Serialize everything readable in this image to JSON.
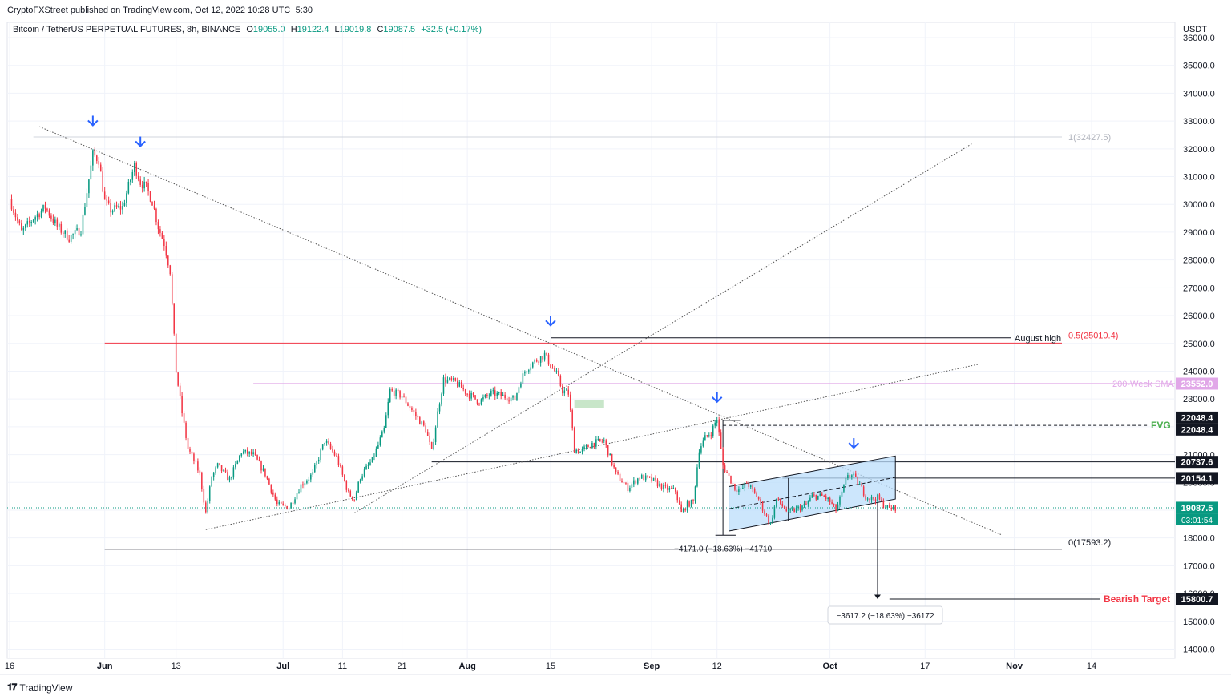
{
  "publisher_line": "CryptoFXStreet published on TradingView.com, Oct 12, 2022 10:28 UTC+5:30",
  "brand": "TradingView",
  "legend": {
    "symbol": "Bitcoin / TetherUS PERPETUAL FUTURES, 8h, BINANCE",
    "o_label": "O",
    "o": "19055.0",
    "h_label": "H",
    "h": "19122.4",
    "l_label": "L",
    "l": "19019.8",
    "c_label": "C",
    "c": "19087.5",
    "change": "+32.5 (+0.17%)"
  },
  "colors": {
    "up": "#089981",
    "down": "#f23645",
    "grid": "#f0f3fa",
    "sma": "#e1a7e8",
    "red_level": "#f23645",
    "arrow": "#2962ff",
    "channel_fill": "#bbdefb",
    "fvg": "#4caf50",
    "fib_grey": "#b2b5be"
  },
  "chart_data": {
    "type": "candlestick",
    "title": "Bitcoin / TetherUS PERPETUAL FUTURES, 8h, BINANCE",
    "ylabel": "USDT",
    "y_axis_unit": "USDT",
    "ylim": [
      13700,
      36300
    ],
    "y_ticks": [
      14000,
      15000,
      16000,
      17000,
      18000,
      19000,
      20000,
      21000,
      22000,
      23000,
      24000,
      25000,
      26000,
      27000,
      28000,
      29000,
      30000,
      31000,
      32000,
      33000,
      34000,
      35000,
      36000
    ],
    "x_ticks": [
      {
        "label": "16",
        "date": "2022-05-16"
      },
      {
        "label": "Jun",
        "date": "2022-06-01"
      },
      {
        "label": "13",
        "date": "2022-06-13"
      },
      {
        "label": "Jul",
        "date": "2022-07-01"
      },
      {
        "label": "11",
        "date": "2022-07-11"
      },
      {
        "label": "21",
        "date": "2022-07-21"
      },
      {
        "label": "Aug",
        "date": "2022-08-01"
      },
      {
        "label": "15",
        "date": "2022-08-15"
      },
      {
        "label": "Sep",
        "date": "2022-09-01"
      },
      {
        "label": "12",
        "date": "2022-09-12"
      },
      {
        "label": "Oct",
        "date": "2022-10-01"
      },
      {
        "label": "17",
        "date": "2022-10-17"
      },
      {
        "label": "Nov",
        "date": "2022-11-01"
      },
      {
        "label": "14",
        "date": "2022-11-14"
      }
    ],
    "price_path": [
      [
        "2022-05-16",
        30200
      ],
      [
        "2022-05-18",
        29000
      ],
      [
        "2022-05-20",
        29500
      ],
      [
        "2022-05-22",
        29900
      ],
      [
        "2022-05-24",
        29200
      ],
      [
        "2022-05-26",
        28800
      ],
      [
        "2022-05-28",
        29100
      ],
      [
        "2022-05-30",
        31800
      ],
      [
        "2022-05-31",
        31600
      ],
      [
        "2022-06-01",
        30100
      ],
      [
        "2022-06-02",
        29800
      ],
      [
        "2022-06-04",
        29900
      ],
      [
        "2022-06-06",
        31400
      ],
      [
        "2022-06-07",
        30800
      ],
      [
        "2022-06-08",
        30600
      ],
      [
        "2022-06-09",
        30100
      ],
      [
        "2022-06-10",
        29200
      ],
      [
        "2022-06-11",
        28600
      ],
      [
        "2022-06-12",
        27600
      ],
      [
        "2022-06-13",
        24000
      ],
      [
        "2022-06-14",
        22500
      ],
      [
        "2022-06-15",
        21200
      ],
      [
        "2022-06-16",
        20800
      ],
      [
        "2022-06-17",
        20300
      ],
      [
        "2022-06-18",
        18900
      ],
      [
        "2022-06-19",
        20200
      ],
      [
        "2022-06-20",
        20600
      ],
      [
        "2022-06-22",
        20100
      ],
      [
        "2022-06-24",
        21100
      ],
      [
        "2022-06-26",
        21000
      ],
      [
        "2022-06-28",
        20300
      ],
      [
        "2022-06-30",
        19200
      ],
      [
        "2022-07-02",
        19100
      ],
      [
        "2022-07-04",
        19900
      ],
      [
        "2022-07-06",
        20300
      ],
      [
        "2022-07-08",
        21500
      ],
      [
        "2022-07-10",
        20900
      ],
      [
        "2022-07-12",
        19600
      ],
      [
        "2022-07-13",
        19400
      ],
      [
        "2022-07-14",
        20200
      ],
      [
        "2022-07-16",
        20800
      ],
      [
        "2022-07-18",
        21900
      ],
      [
        "2022-07-19",
        23300
      ],
      [
        "2022-07-21",
        23100
      ],
      [
        "2022-07-23",
        22500
      ],
      [
        "2022-07-25",
        21900
      ],
      [
        "2022-07-26",
        21100
      ],
      [
        "2022-07-27",
        22500
      ],
      [
        "2022-07-28",
        23700
      ],
      [
        "2022-07-30",
        23600
      ],
      [
        "2022-08-01",
        23200
      ],
      [
        "2022-08-03",
        22900
      ],
      [
        "2022-08-05",
        23200
      ],
      [
        "2022-08-07",
        23100
      ],
      [
        "2022-08-09",
        23000
      ],
      [
        "2022-08-10",
        23700
      ],
      [
        "2022-08-11",
        24100
      ],
      [
        "2022-08-12",
        24300
      ],
      [
        "2022-08-14",
        24600
      ],
      [
        "2022-08-15",
        24200
      ],
      [
        "2022-08-16",
        23900
      ],
      [
        "2022-08-17",
        23300
      ],
      [
        "2022-08-18",
        23200
      ],
      [
        "2022-08-19",
        21200
      ],
      [
        "2022-08-20",
        21100
      ],
      [
        "2022-08-22",
        21400
      ],
      [
        "2022-08-24",
        21500
      ],
      [
        "2022-08-26",
        20300
      ],
      [
        "2022-08-28",
        19800
      ],
      [
        "2022-08-30",
        20200
      ],
      [
        "2022-09-01",
        20100
      ],
      [
        "2022-09-03",
        19800
      ],
      [
        "2022-09-05",
        19700
      ],
      [
        "2022-09-06",
        18900
      ],
      [
        "2022-09-07",
        19200
      ],
      [
        "2022-09-08",
        19300
      ],
      [
        "2022-09-09",
        21200
      ],
      [
        "2022-09-10",
        21600
      ],
      [
        "2022-09-11",
        21800
      ],
      [
        "2022-09-12",
        22300
      ],
      [
        "2022-09-13",
        20600
      ],
      [
        "2022-09-14",
        20200
      ],
      [
        "2022-09-15",
        19800
      ],
      [
        "2022-09-16",
        19700
      ],
      [
        "2022-09-17",
        20000
      ],
      [
        "2022-09-19",
        19400
      ],
      [
        "2022-09-20",
        18900
      ],
      [
        "2022-09-21",
        18500
      ],
      [
        "2022-09-22",
        19400
      ],
      [
        "2022-09-24",
        18900
      ],
      [
        "2022-09-26",
        19100
      ],
      [
        "2022-09-27",
        19200
      ],
      [
        "2022-09-28",
        19500
      ],
      [
        "2022-09-30",
        19500
      ],
      [
        "2022-10-01",
        19300
      ],
      [
        "2022-10-02",
        19000
      ],
      [
        "2022-10-03",
        19600
      ],
      [
        "2022-10-04",
        20300
      ],
      [
        "2022-10-05",
        20200
      ],
      [
        "2022-10-06",
        19900
      ],
      [
        "2022-10-07",
        19500
      ],
      [
        "2022-10-08",
        19400
      ],
      [
        "2022-10-09",
        19450
      ],
      [
        "2022-10-10",
        19200
      ],
      [
        "2022-10-11",
        19050
      ],
      [
        "2022-10-12",
        19087.5
      ]
    ],
    "levels": [
      {
        "name": "fib-1",
        "value": 32427.5,
        "label": "1(32427.5)"
      },
      {
        "name": "fib-0.5",
        "value": 25010.4,
        "label": "0.5(25010.4)"
      },
      {
        "name": "fib-0",
        "value": 17593.2,
        "label": "0(17593.2)"
      },
      {
        "name": "august-high",
        "value": 25200,
        "label": "August high"
      },
      {
        "name": "200-week-sma",
        "value": 23552.0,
        "label": "200-Week SMA"
      },
      {
        "name": "fvg",
        "value": 22048.4,
        "label": "FVG"
      },
      {
        "name": "level-20737",
        "value": 20737.6
      },
      {
        "name": "level-20154",
        "value": 20154.1
      },
      {
        "name": "bearish-target",
        "value": 15800.7,
        "label": "Bearish Target"
      }
    ],
    "price_tags": [
      {
        "label": "23552.0",
        "value": 23552.0,
        "color": "#e1a7e8"
      },
      {
        "label": "22048.4",
        "value": 22330,
        "color": "#131722"
      },
      {
        "label": "22048.4",
        "value": 21900,
        "color": "#131722"
      },
      {
        "label": "20737.6",
        "value": 20737.6,
        "color": "#131722"
      },
      {
        "label": "20154.1",
        "value": 20154.1,
        "color": "#131722"
      },
      {
        "label": "19087.5",
        "value": 19087.5,
        "color": "#089981"
      },
      {
        "label": "15800.7",
        "value": 15800.7,
        "color": "#131722"
      }
    ],
    "countdown": "03:01:54",
    "measurements": [
      {
        "label": "−4171.0 (−18.63%) −41710"
      },
      {
        "label": "−3617.2 (−18.63%) −36172"
      }
    ]
  }
}
